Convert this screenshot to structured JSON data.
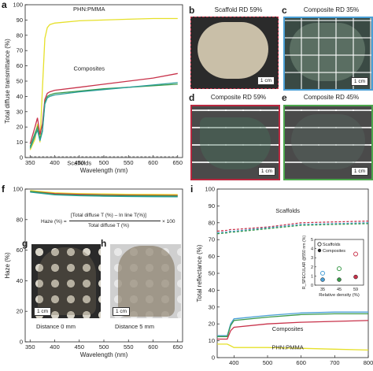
{
  "panels": {
    "a": {
      "label": "a",
      "ylabel": "Total diffuse transmittance (%)",
      "xlabel": "Wavelength (nm)",
      "xticks": [
        "350",
        "400",
        "450",
        "500",
        "550",
        "600",
        "650"
      ],
      "yticks": [
        "0",
        "10",
        "20",
        "30",
        "40",
        "50",
        "60",
        "70",
        "80",
        "90",
        "100"
      ],
      "annotations": {
        "phn": "PHN:PMMA",
        "comp": "Composites",
        "scaf": "Scaffolds"
      }
    },
    "b": {
      "label": "b",
      "title": "Scaffold RD 59%",
      "scale": "1 cm",
      "border": "#c8324a"
    },
    "c": {
      "label": "c",
      "title": "Composite RD 35%",
      "scale": "1 cm",
      "border": "#4a9fd6"
    },
    "d": {
      "label": "d",
      "title": "Composite RD 59%",
      "scale": "1 cm",
      "border": "#b8283f"
    },
    "e": {
      "label": "e",
      "title": "Composite RD 45%",
      "scale": "1 cm",
      "border": "#4ca64c"
    },
    "f": {
      "label": "f",
      "ylabel": "Haze (%)",
      "xlabel": "Wavelength (nm)",
      "xticks": [
        "350",
        "400",
        "450",
        "500",
        "550",
        "600",
        "650"
      ],
      "yticks": [
        "0",
        "20",
        "40",
        "60",
        "80",
        "100"
      ],
      "formula_lhs": "Haze (%) =",
      "formula_num": "[Total diffuse T (%) – In line T(%)]",
      "formula_den": "Total diffuse T (%)",
      "formula_mult": "× 100"
    },
    "g": {
      "label": "g",
      "caption": "Distance 0 mm",
      "scale": "1 cm"
    },
    "h": {
      "label": "h",
      "caption": "Distance 5 mm",
      "scale": "1 cm"
    },
    "i": {
      "label": "i",
      "ylabel": "Total reflectance (%)",
      "xlabel": "Wavelength (nm)",
      "xticks": [
        "400",
        "500",
        "600",
        "700",
        "800"
      ],
      "yticks": [
        "0",
        "10",
        "20",
        "30",
        "40",
        "50",
        "60",
        "70",
        "80",
        "90",
        "100"
      ],
      "annotations": {
        "scaf": "Scaffolds",
        "comp": "Composites",
        "phn": "PHN:PMMA"
      },
      "inset": {
        "ylabel": "R_SPECULAR @550 nm (%)",
        "xlabel": "Relative density (%)",
        "xticks": [
          "35",
          "45",
          "59"
        ],
        "yticks": [
          "0",
          "1",
          "2",
          "3",
          "4",
          "5"
        ],
        "legend": [
          "Scaffolds",
          "Composites"
        ]
      }
    }
  },
  "colors": {
    "yellow": "#e6e02a",
    "red": "#c8324a",
    "green": "#3a9a4a",
    "teal": "#2a9d9a",
    "blue": "#4a9fd6",
    "grey": "#888888"
  },
  "chart_data": [
    {
      "type": "line",
      "x": [
        350,
        360,
        365,
        370,
        375,
        380,
        385,
        390,
        400,
        450,
        500,
        550,
        600,
        650
      ],
      "series": [
        {
          "name": "PHN:PMMA",
          "values": [
            5,
            12,
            22,
            10,
            45,
            78,
            85,
            87,
            88,
            89.5,
            90,
            90.5,
            91,
            91
          ]
        },
        {
          "values": [
            9,
            20,
            26,
            15,
            22,
            38,
            42,
            43,
            44,
            46,
            48,
            50,
            52,
            55
          ]
        },
        {
          "values": [
            7,
            16,
            20,
            12,
            18,
            36,
            40,
            41,
            42,
            43.5,
            45,
            46,
            47,
            48
          ]
        },
        {
          "values": [
            6,
            14,
            18,
            11,
            17,
            35,
            39,
            40,
            41,
            43,
            44.5,
            46,
            47.5,
            49
          ]
        },
        {
          "values": [
            0.5,
            0.5,
            0.5,
            0.5,
            0.5,
            0.5,
            0.5,
            0.5,
            0.5,
            0.5,
            0.5,
            0.5,
            0.5,
            0.5
          ]
        }
      ],
      "xlim": [
        340,
        660
      ],
      "ylim": [
        0,
        100
      ],
      "grid": false
    },
    {
      "type": "line",
      "x": [
        350,
        400,
        450,
        500,
        550,
        600,
        650
      ],
      "series": [
        {
          "values": [
            99,
            97.5,
            97,
            96.8,
            96.6,
            96.5,
            96.4
          ]
        },
        {
          "values": [
            98.5,
            97,
            96.5,
            96.2,
            96,
            95.9,
            95.8
          ]
        },
        {
          "values": [
            98.5,
            96.5,
            96,
            95.8,
            95.6,
            95.5,
            95.4
          ]
        },
        {
          "values": [
            98,
            96.2,
            95.6,
            95.3,
            95.1,
            95,
            94.9
          ]
        }
      ],
      "xlim": [
        340,
        660
      ],
      "ylim": [
        0,
        100
      ]
    },
    {
      "type": "line",
      "x": [
        350,
        380,
        390,
        400,
        500,
        600,
        700,
        800
      ],
      "series": [
        {
          "values": [
            75,
            75.5,
            76,
            76,
            77.5,
            80,
            80.5,
            81
          ]
        },
        {
          "values": [
            74,
            74.5,
            75,
            75,
            77,
            79,
            79.5,
            80
          ]
        },
        {
          "values": [
            73.5,
            74,
            74.5,
            74.5,
            76.5,
            78.5,
            79,
            79.5
          ]
        },
        {
          "values": [
            13,
            13,
            20,
            23,
            25,
            26.5,
            27,
            27
          ]
        },
        {
          "values": [
            12.5,
            12.5,
            19,
            22,
            24,
            25.5,
            26,
            26
          ]
        },
        {
          "values": [
            11,
            11,
            16,
            18,
            20,
            21,
            21.5,
            22
          ]
        },
        {
          "name": "PHN:PMMA",
          "values": [
            8,
            8,
            7,
            6,
            6,
            5.5,
            5,
            4.5
          ]
        }
      ],
      "xlim": [
        350,
        800
      ],
      "ylim": [
        0,
        100
      ]
    },
    {
      "type": "scatter",
      "categories": [
        "35",
        "45",
        "59"
      ],
      "series": [
        {
          "name": "Scaffolds",
          "values": [
            1.3,
            1.8,
            3.4
          ]
        },
        {
          "name": "Composites",
          "values": [
            0.6,
            0.6,
            0.9
          ]
        }
      ],
      "ylim": [
        0,
        5
      ]
    }
  ]
}
